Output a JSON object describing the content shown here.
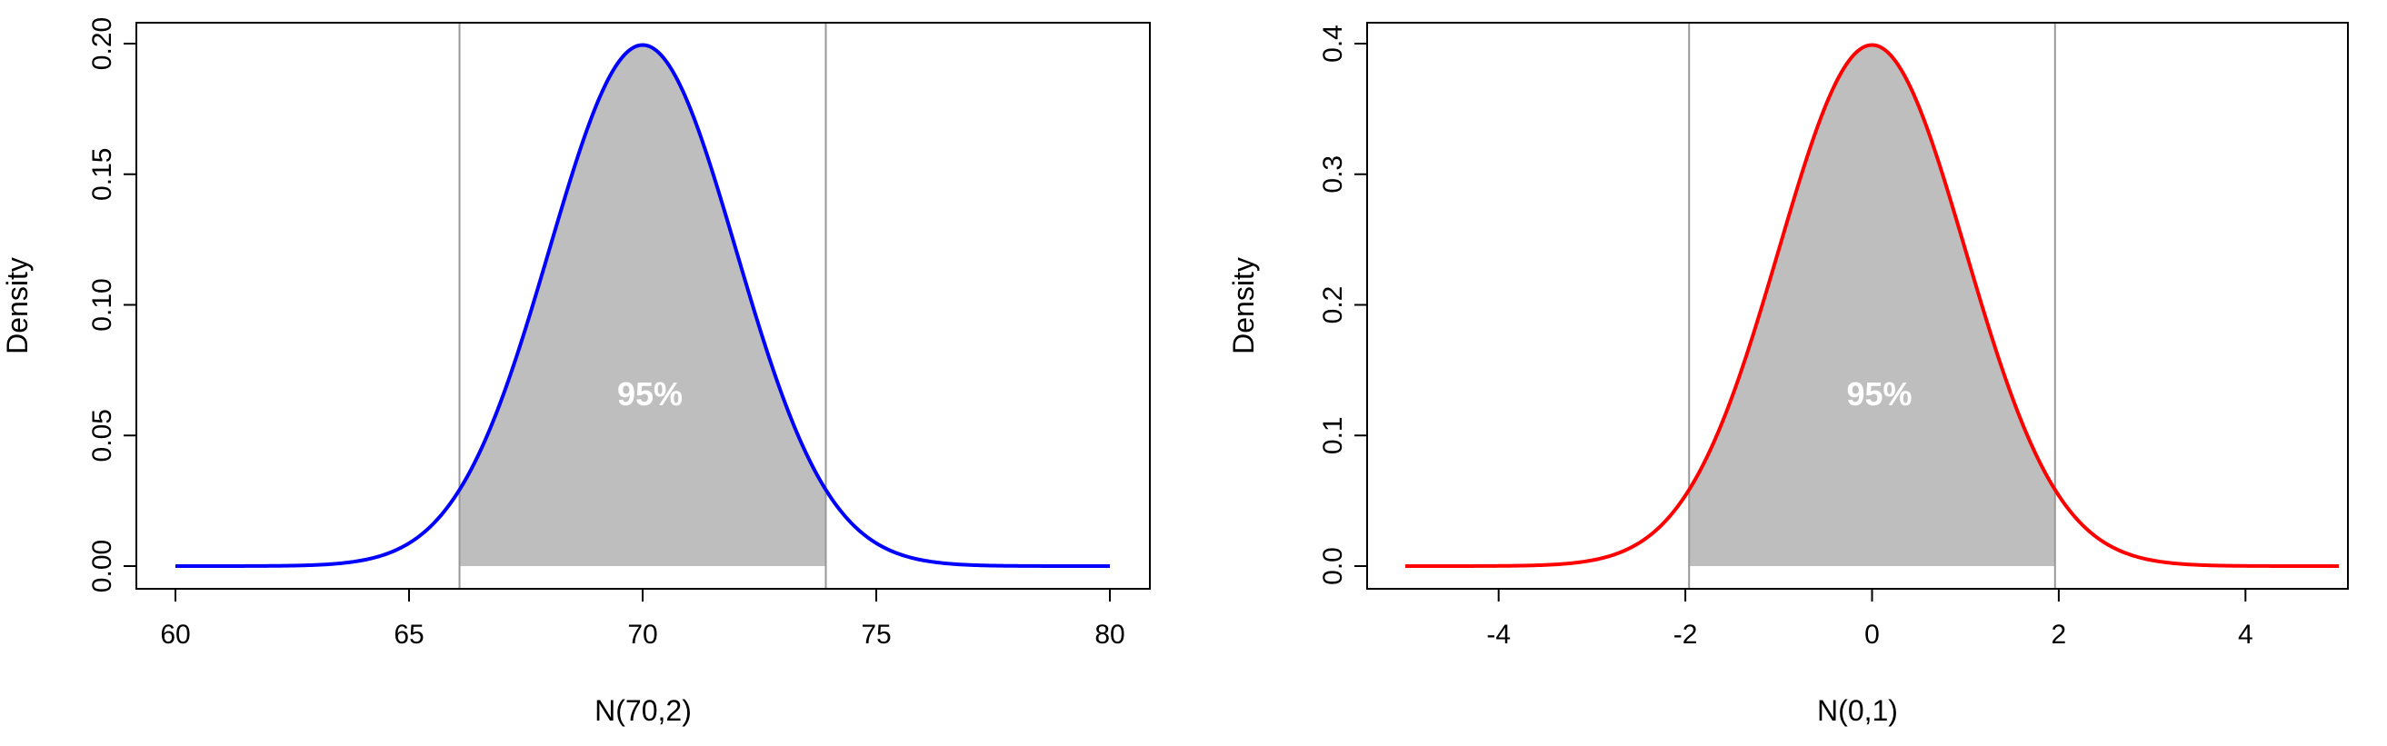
{
  "chart_data": [
    {
      "type": "area",
      "distribution": "normal",
      "mean": 70,
      "sd": 2,
      "x_range": [
        60,
        80
      ],
      "xlim": [
        60,
        80
      ],
      "ylim": [
        0,
        0.2
      ],
      "xticks": [
        60,
        65,
        70,
        75,
        80
      ],
      "xtick_labels": [
        "60",
        "65",
        "70",
        "75",
        "80"
      ],
      "yticks": [
        0,
        0.05,
        0.1,
        0.15,
        0.2
      ],
      "ytick_labels": [
        "0.00",
        "0.05",
        "0.10",
        "0.15",
        "0.20"
      ],
      "xlabel": "N(70,2)",
      "ylabel": "Density",
      "curve_color": "#0000ff",
      "shade_color": "#bebebe",
      "shade_from": 66.08,
      "shade_to": 73.92,
      "shade_label": "95%",
      "vlines": [
        66.08,
        73.92
      ],
      "vline_color": "#999999"
    },
    {
      "type": "area",
      "distribution": "normal",
      "mean": 0,
      "sd": 1,
      "x_range": [
        -5,
        5
      ],
      "xlim": [
        -5,
        5
      ],
      "ylim": [
        0,
        0.4
      ],
      "xticks": [
        -4,
        -2,
        0,
        2,
        4
      ],
      "xtick_labels": [
        "-4",
        "-2",
        "0",
        "2",
        "4"
      ],
      "yticks": [
        0,
        0.1,
        0.2,
        0.3,
        0.4
      ],
      "ytick_labels": [
        "0.0",
        "0.1",
        "0.2",
        "0.3",
        "0.4"
      ],
      "xlabel": "N(0,1)",
      "ylabel": "Density",
      "curve_color": "#ff0000",
      "shade_color": "#bebebe",
      "shade_from": -1.96,
      "shade_to": 1.96,
      "shade_label": "95%",
      "vlines": [
        -1.96,
        1.96
      ],
      "vline_color": "#999999"
    }
  ]
}
